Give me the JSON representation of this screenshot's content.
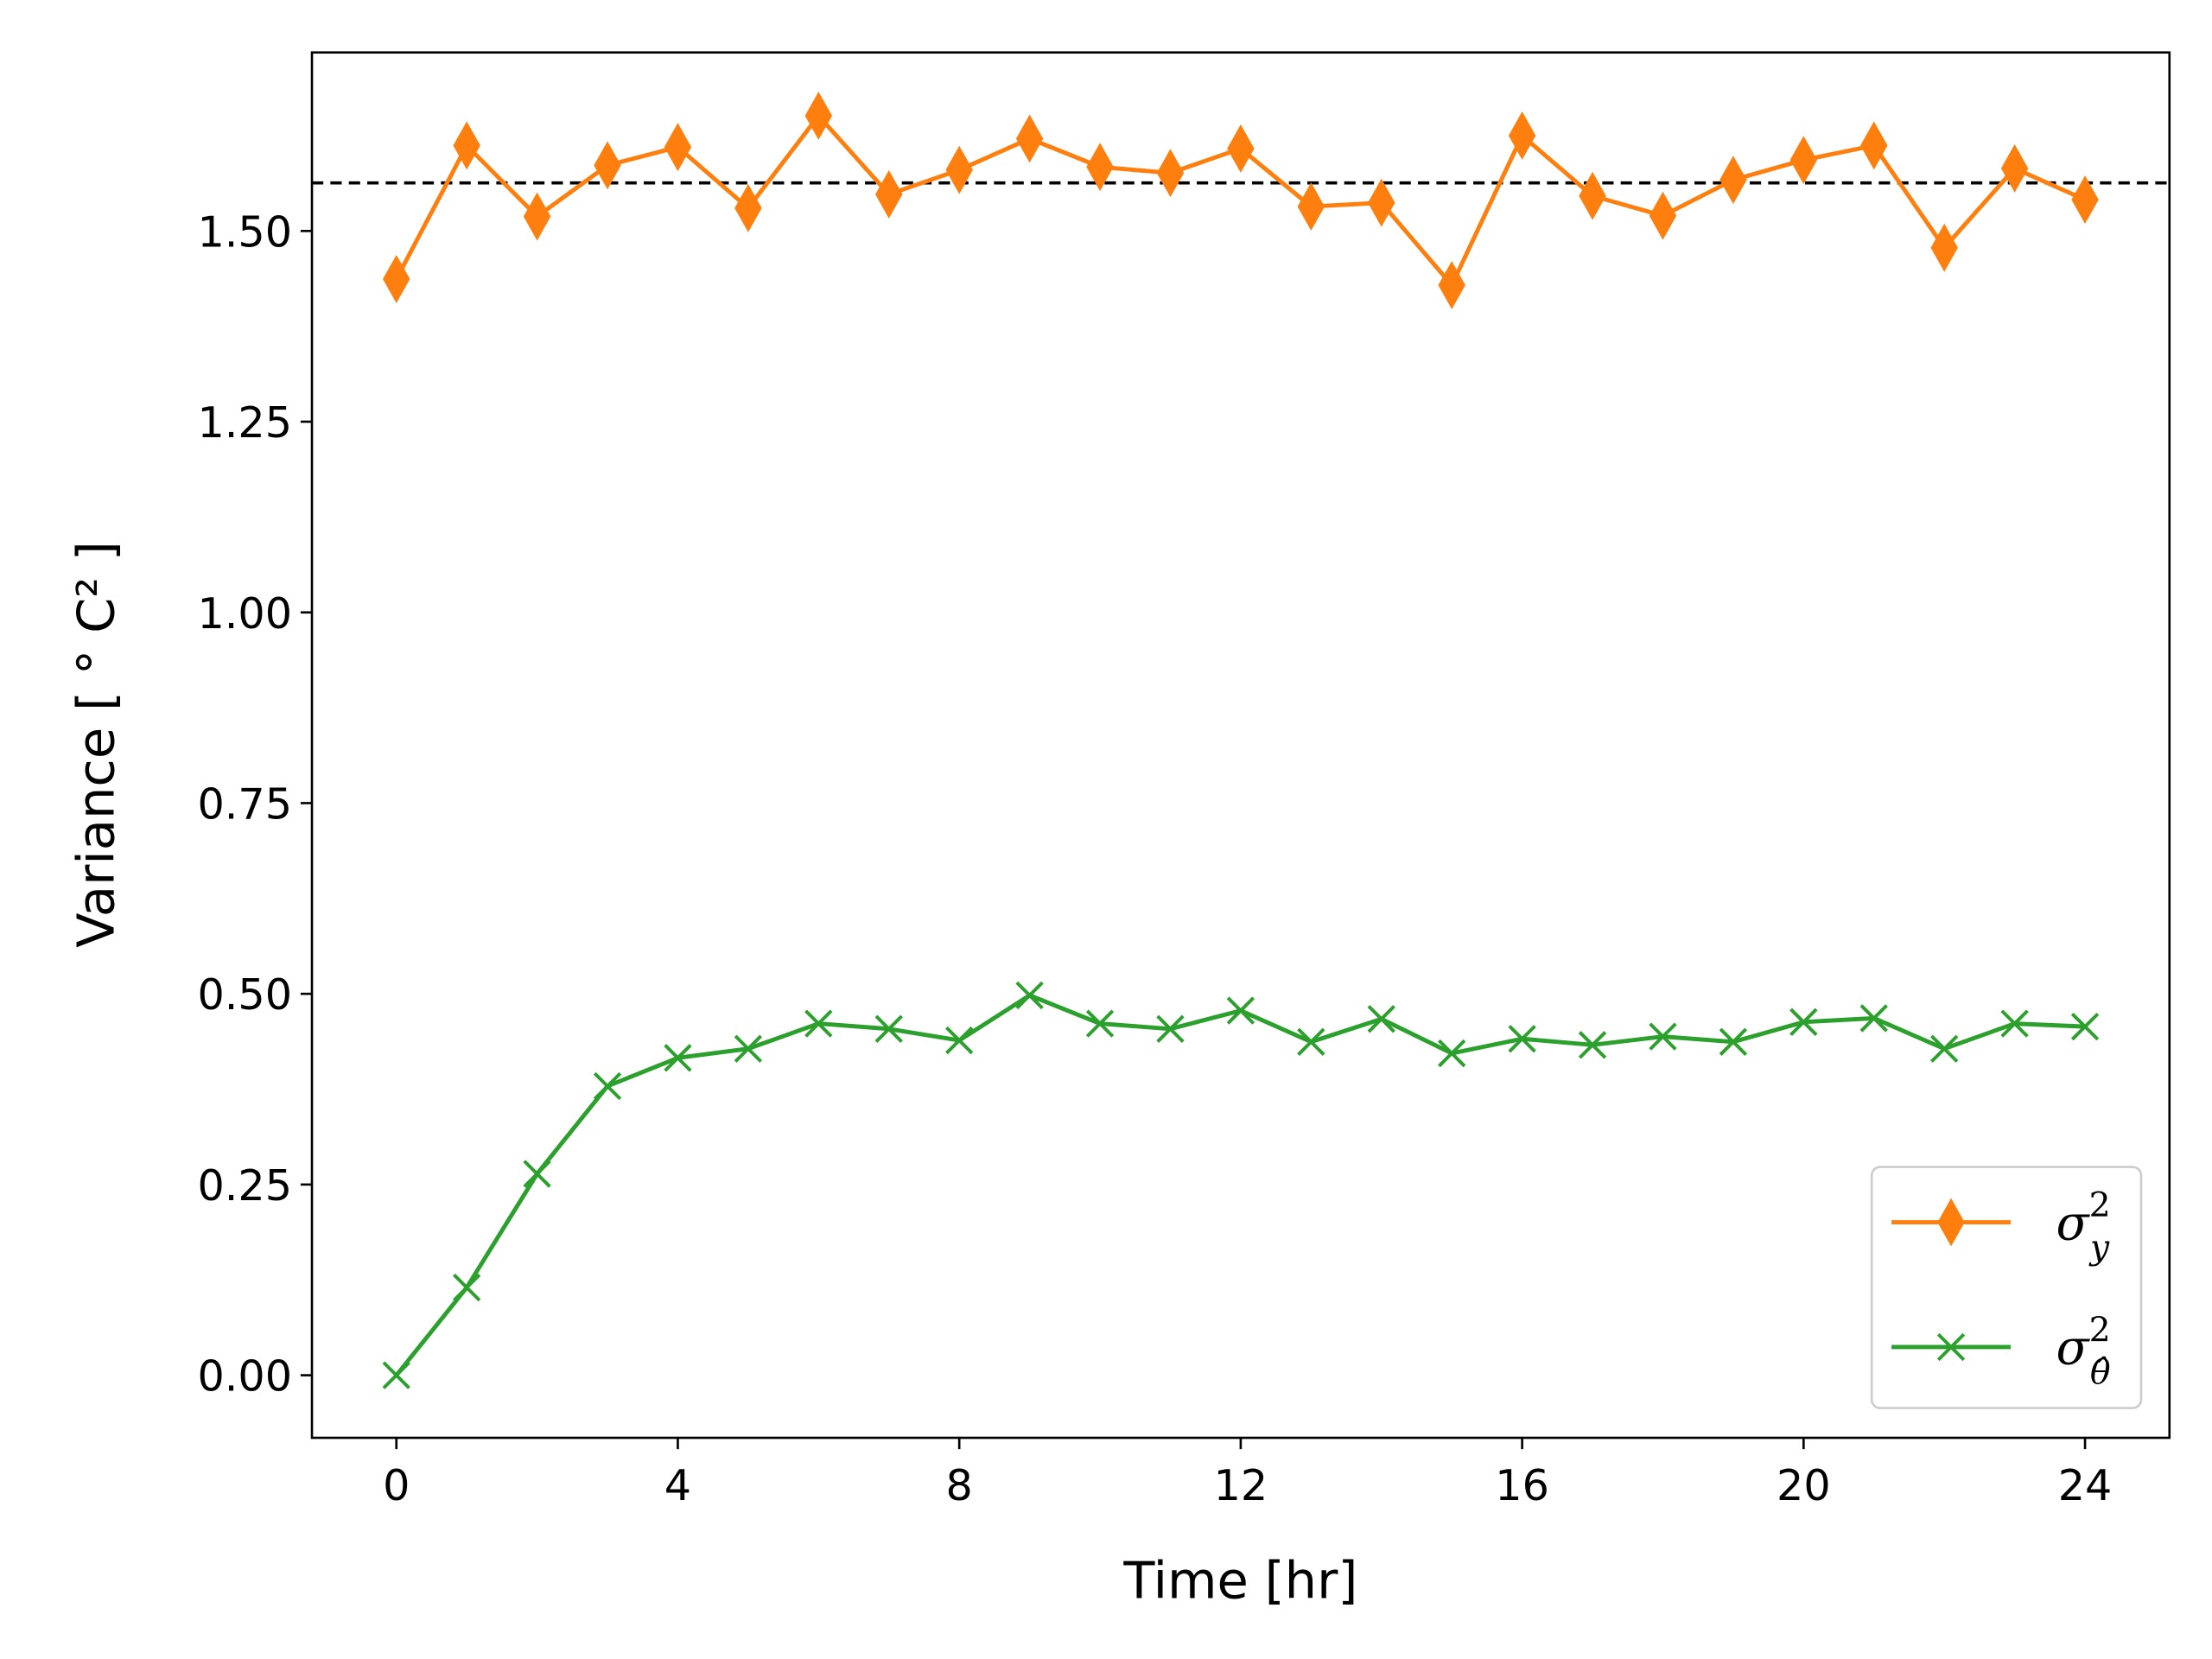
{
  "chart_data": {
    "type": "line",
    "xlabel": "Time [hr]",
    "ylabel": "Variance [ ° C² ]",
    "xlim": [
      -1.2,
      25.2
    ],
    "ylim": [
      -0.082,
      1.734
    ],
    "xticks": [
      0,
      4,
      8,
      12,
      16,
      20,
      24
    ],
    "xtick_labels": [
      "0",
      "4",
      "8",
      "12",
      "16",
      "20",
      "24"
    ],
    "yticks": [
      0,
      0.25,
      0.5,
      0.75,
      1.0,
      1.25,
      1.5
    ],
    "ytick_labels": [
      "0.00",
      "0.25",
      "0.50",
      "0.75",
      "1.00",
      "1.25",
      "1.50"
    ],
    "grid": false,
    "legend_placement": "lower-right",
    "x": [
      0,
      1,
      2,
      3,
      4,
      5,
      6,
      7,
      8,
      9,
      10,
      11,
      12,
      13,
      14,
      15,
      16,
      17,
      18,
      19,
      20,
      21,
      22,
      23,
      24
    ],
    "series": [
      {
        "name": "σ_y^2",
        "label_base": "σ",
        "label_sub": "y",
        "label_sup": "2",
        "color": "#ff7f0e",
        "marker": "diamond",
        "values": [
          1.437,
          1.612,
          1.519,
          1.586,
          1.61,
          1.53,
          1.651,
          1.548,
          1.58,
          1.621,
          1.584,
          1.576,
          1.608,
          1.532,
          1.537,
          1.429,
          1.625,
          1.546,
          1.52,
          1.567,
          1.593,
          1.612,
          1.478,
          1.582,
          1.541
        ]
      },
      {
        "name": "σ_θ̂^2",
        "label_base": "σ",
        "label_sub": "θ̂",
        "label_sup": "2",
        "color": "#2ca02c",
        "marker": "x",
        "values": [
          0.0,
          0.115,
          0.264,
          0.379,
          0.416,
          0.428,
          0.461,
          0.454,
          0.439,
          0.498,
          0.461,
          0.454,
          0.478,
          0.437,
          0.467,
          0.422,
          0.441,
          0.433,
          0.444,
          0.437,
          0.463,
          0.468,
          0.428,
          0.461,
          0.457
        ]
      }
    ],
    "reference_line": {
      "y": 1.563,
      "style": "dashed",
      "color": "#000000"
    }
  }
}
